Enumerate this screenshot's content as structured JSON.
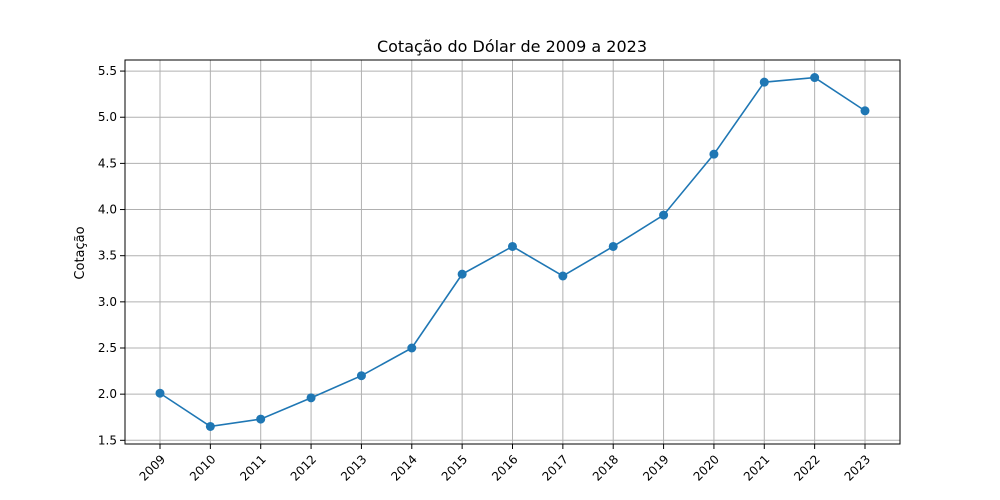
{
  "chart_data": {
    "type": "line",
    "title": "Cotação do Dólar de 2009 a 2023",
    "xlabel": "",
    "ylabel": "Cotação",
    "x": [
      "2009",
      "2010",
      "2011",
      "2012",
      "2013",
      "2014",
      "2015",
      "2016",
      "2017",
      "2018",
      "2019",
      "2020",
      "2021",
      "2022",
      "2023"
    ],
    "series": [
      {
        "name": "",
        "values": [
          2.01,
          1.65,
          1.73,
          1.96,
          2.2,
          2.5,
          3.3,
          3.6,
          3.28,
          3.6,
          3.94,
          4.6,
          5.38,
          5.43,
          5.07
        ],
        "color": "#1f77b4",
        "marker": "circle"
      }
    ],
    "ylim": [
      1.46,
      5.62
    ],
    "yticks": [
      "1.5",
      "2.0",
      "2.5",
      "3.0",
      "3.5",
      "4.0",
      "4.5",
      "5.0",
      "5.5"
    ],
    "grid": true,
    "legend": "none",
    "xtick_rotation": 45
  }
}
